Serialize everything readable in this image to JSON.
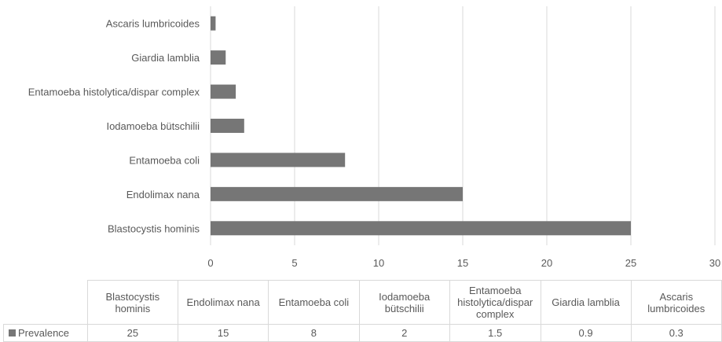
{
  "chart_data": {
    "type": "bar",
    "orientation": "horizontal",
    "categories": [
      "Blastocystis hominis",
      "Endolimax nana",
      "Entamoeba coli",
      "Iodamoeba bütschilii",
      "Entamoeba histolytica/dispar complex",
      "Giardia lamblia",
      "Ascaris lumbricoides"
    ],
    "table_headers": [
      "Blastocystis hominis",
      "Endolimax nana",
      "Entamoeba coli",
      "Iodamoeba bütschilii",
      "Entamoeba histolytica/dispar complex",
      "Giardia lamblia",
      "Ascaris lumbricoides"
    ],
    "series": [
      {
        "name": "Prevalence",
        "values": [
          25,
          15,
          8,
          2,
          1.5,
          0.9,
          0.3
        ]
      }
    ],
    "value_labels": [
      "25",
      "15",
      "8",
      "2",
      "1.5",
      "0.9",
      "0.3"
    ],
    "xlim": [
      0,
      30
    ],
    "xticks": [
      "0",
      "5",
      "10",
      "15",
      "20",
      "25",
      "30"
    ],
    "grid": true,
    "legend": "data-table",
    "color": "#767676"
  }
}
